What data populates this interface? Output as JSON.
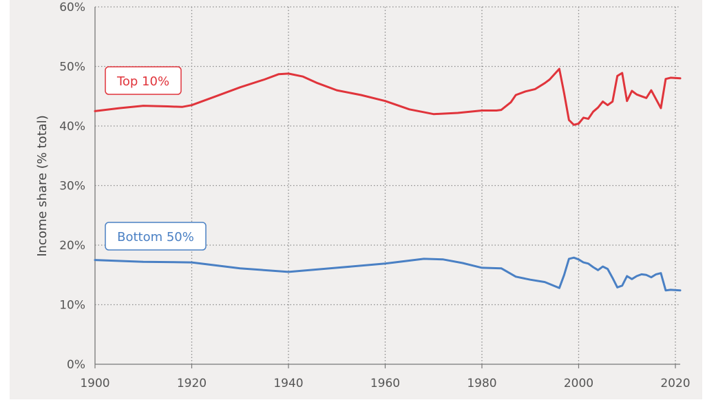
{
  "chart_data": {
    "type": "line",
    "title": "",
    "xlabel": "",
    "ylabel": "Income share (% total)",
    "xlim": [
      1900,
      2021
    ],
    "ylim": [
      0,
      60
    ],
    "x_ticks": [
      1900,
      1920,
      1940,
      1960,
      1980,
      2000,
      2020
    ],
    "x_tick_labels": [
      "1900",
      "1920",
      "1940",
      "1960",
      "1980",
      "2000",
      "2020"
    ],
    "y_ticks": [
      0,
      10,
      20,
      30,
      40,
      50,
      60
    ],
    "y_tick_labels": [
      "0%",
      "10%",
      "20%",
      "30%",
      "40%",
      "50%",
      "60%"
    ],
    "grid": "dotted",
    "legend": "inline boxed labels",
    "series": [
      {
        "name": "Top 10%",
        "color": "#e0343b",
        "points": [
          [
            1900,
            42.5
          ],
          [
            1905,
            43.0
          ],
          [
            1910,
            43.4
          ],
          [
            1915,
            43.3
          ],
          [
            1918,
            43.2
          ],
          [
            1920,
            43.5
          ],
          [
            1925,
            45.0
          ],
          [
            1930,
            46.5
          ],
          [
            1935,
            47.8
          ],
          [
            1938,
            48.7
          ],
          [
            1940,
            48.8
          ],
          [
            1943,
            48.3
          ],
          [
            1946,
            47.2
          ],
          [
            1950,
            46.0
          ],
          [
            1955,
            45.2
          ],
          [
            1960,
            44.2
          ],
          [
            1965,
            42.8
          ],
          [
            1970,
            42.0
          ],
          [
            1975,
            42.2
          ],
          [
            1980,
            42.6
          ],
          [
            1983,
            42.6
          ],
          [
            1984,
            42.7
          ],
          [
            1986,
            44.0
          ],
          [
            1987,
            45.2
          ],
          [
            1989,
            45.8
          ],
          [
            1991,
            46.2
          ],
          [
            1993,
            47.2
          ],
          [
            1994,
            47.8
          ],
          [
            1996,
            49.6
          ],
          [
            1997,
            45.5
          ],
          [
            1998,
            41.0
          ],
          [
            1999,
            40.2
          ],
          [
            2000,
            40.4
          ],
          [
            2001,
            41.4
          ],
          [
            2002,
            41.2
          ],
          [
            2003,
            42.4
          ],
          [
            2004,
            43.1
          ],
          [
            2005,
            44.1
          ],
          [
            2006,
            43.5
          ],
          [
            2007,
            44.1
          ],
          [
            2008,
            48.4
          ],
          [
            2009,
            48.9
          ],
          [
            2010,
            44.2
          ],
          [
            2011,
            45.9
          ],
          [
            2012,
            45.3
          ],
          [
            2013,
            45.0
          ],
          [
            2014,
            44.7
          ],
          [
            2015,
            46.0
          ],
          [
            2016,
            44.5
          ],
          [
            2017,
            43.0
          ],
          [
            2018,
            47.9
          ],
          [
            2019,
            48.1
          ],
          [
            2021,
            48.0
          ]
        ]
      },
      {
        "name": "Bottom 50%",
        "color": "#4a80c4",
        "points": [
          [
            1900,
            17.5
          ],
          [
            1910,
            17.2
          ],
          [
            1920,
            17.1
          ],
          [
            1930,
            16.1
          ],
          [
            1940,
            15.5
          ],
          [
            1950,
            16.2
          ],
          [
            1960,
            16.9
          ],
          [
            1968,
            17.7
          ],
          [
            1972,
            17.6
          ],
          [
            1976,
            17.0
          ],
          [
            1980,
            16.2
          ],
          [
            1984,
            16.1
          ],
          [
            1987,
            14.7
          ],
          [
            1990,
            14.2
          ],
          [
            1993,
            13.8
          ],
          [
            1996,
            12.8
          ],
          [
            1997,
            15.0
          ],
          [
            1998,
            17.7
          ],
          [
            1999,
            17.9
          ],
          [
            2000,
            17.6
          ],
          [
            2001,
            17.1
          ],
          [
            2002,
            16.9
          ],
          [
            2003,
            16.3
          ],
          [
            2004,
            15.8
          ],
          [
            2005,
            16.4
          ],
          [
            2006,
            16.0
          ],
          [
            2007,
            14.5
          ],
          [
            2008,
            12.9
          ],
          [
            2009,
            13.2
          ],
          [
            2010,
            14.8
          ],
          [
            2011,
            14.3
          ],
          [
            2012,
            14.8
          ],
          [
            2013,
            15.1
          ],
          [
            2014,
            15.0
          ],
          [
            2015,
            14.6
          ],
          [
            2016,
            15.1
          ],
          [
            2017,
            15.3
          ],
          [
            2018,
            12.4
          ],
          [
            2019,
            12.5
          ],
          [
            2021,
            12.4
          ]
        ]
      }
    ]
  }
}
